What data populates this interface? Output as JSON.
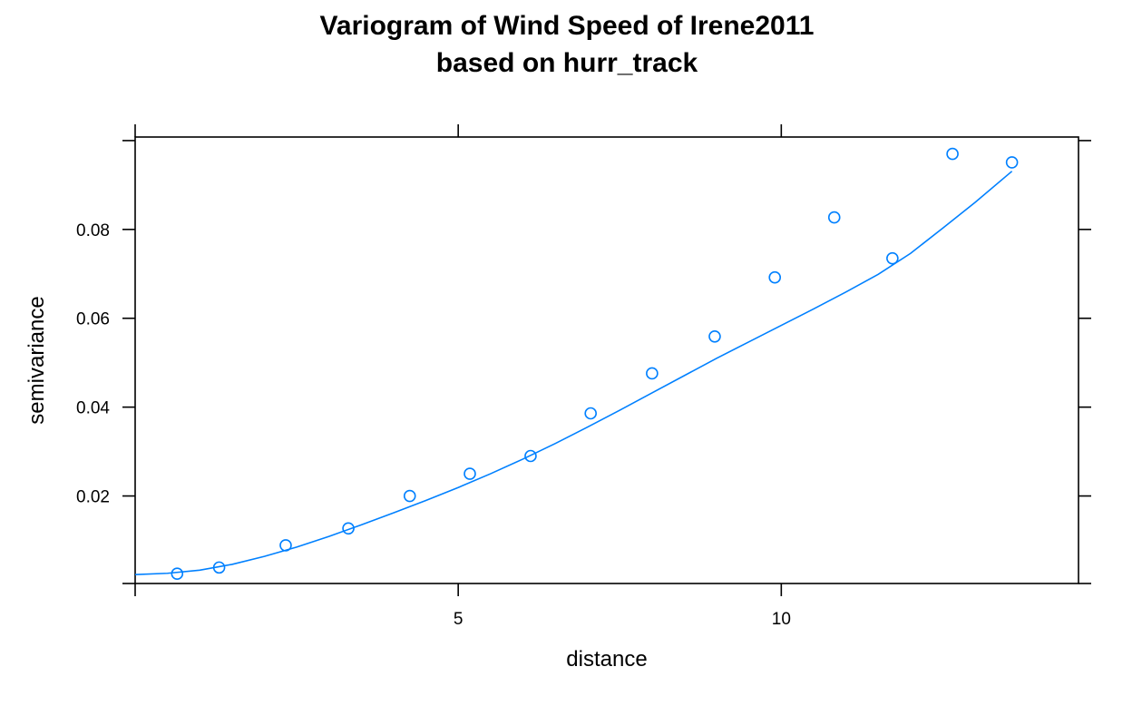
{
  "chart_data": {
    "type": "scatter",
    "title": [
      "Variogram of Wind Speed of Irene2011",
      "based on hurr_track"
    ],
    "xlabel": "distance",
    "ylabel": "semivariance",
    "xlim": [
      0,
      14.6
    ],
    "ylim": [
      0.0003,
      0.1008
    ],
    "x_ticks": [
      5,
      10
    ],
    "y_ticks": [
      0.02,
      0.04,
      0.06,
      0.08
    ],
    "x_tick_labels": [
      "5",
      "10"
    ],
    "y_tick_labels": [
      "0.02",
      "0.04",
      "0.06",
      "0.08"
    ],
    "grid": false,
    "color": "#0080ff",
    "points": {
      "x": [
        0.65,
        1.3,
        2.33,
        3.3,
        4.25,
        5.18,
        6.12,
        7.05,
        8.0,
        8.97,
        9.9,
        10.82,
        11.72,
        12.65,
        13.57
      ],
      "y": [
        0.0025,
        0.0039,
        0.0089,
        0.0127,
        0.02,
        0.025,
        0.029,
        0.0386,
        0.0476,
        0.0559,
        0.0692,
        0.0827,
        0.0735,
        0.097,
        0.0951
      ]
    },
    "fitted_curve": {
      "x": [
        0,
        0.5,
        1,
        1.5,
        2,
        2.5,
        3,
        3.5,
        4,
        4.5,
        5,
        5.5,
        6,
        6.5,
        7,
        7.5,
        8,
        8.5,
        9,
        9.5,
        10,
        10.5,
        11,
        11.5,
        12,
        12.5,
        13,
        13.57
      ],
      "y": [
        0.0023,
        0.0026,
        0.0033,
        0.0046,
        0.0064,
        0.0085,
        0.0109,
        0.0135,
        0.0162,
        0.019,
        0.0219,
        0.025,
        0.0283,
        0.0318,
        0.0355,
        0.0393,
        0.0432,
        0.0471,
        0.051,
        0.0547,
        0.0584,
        0.0621,
        0.0659,
        0.0699,
        0.0746,
        0.0803,
        0.0861,
        0.0931
      ]
    }
  }
}
